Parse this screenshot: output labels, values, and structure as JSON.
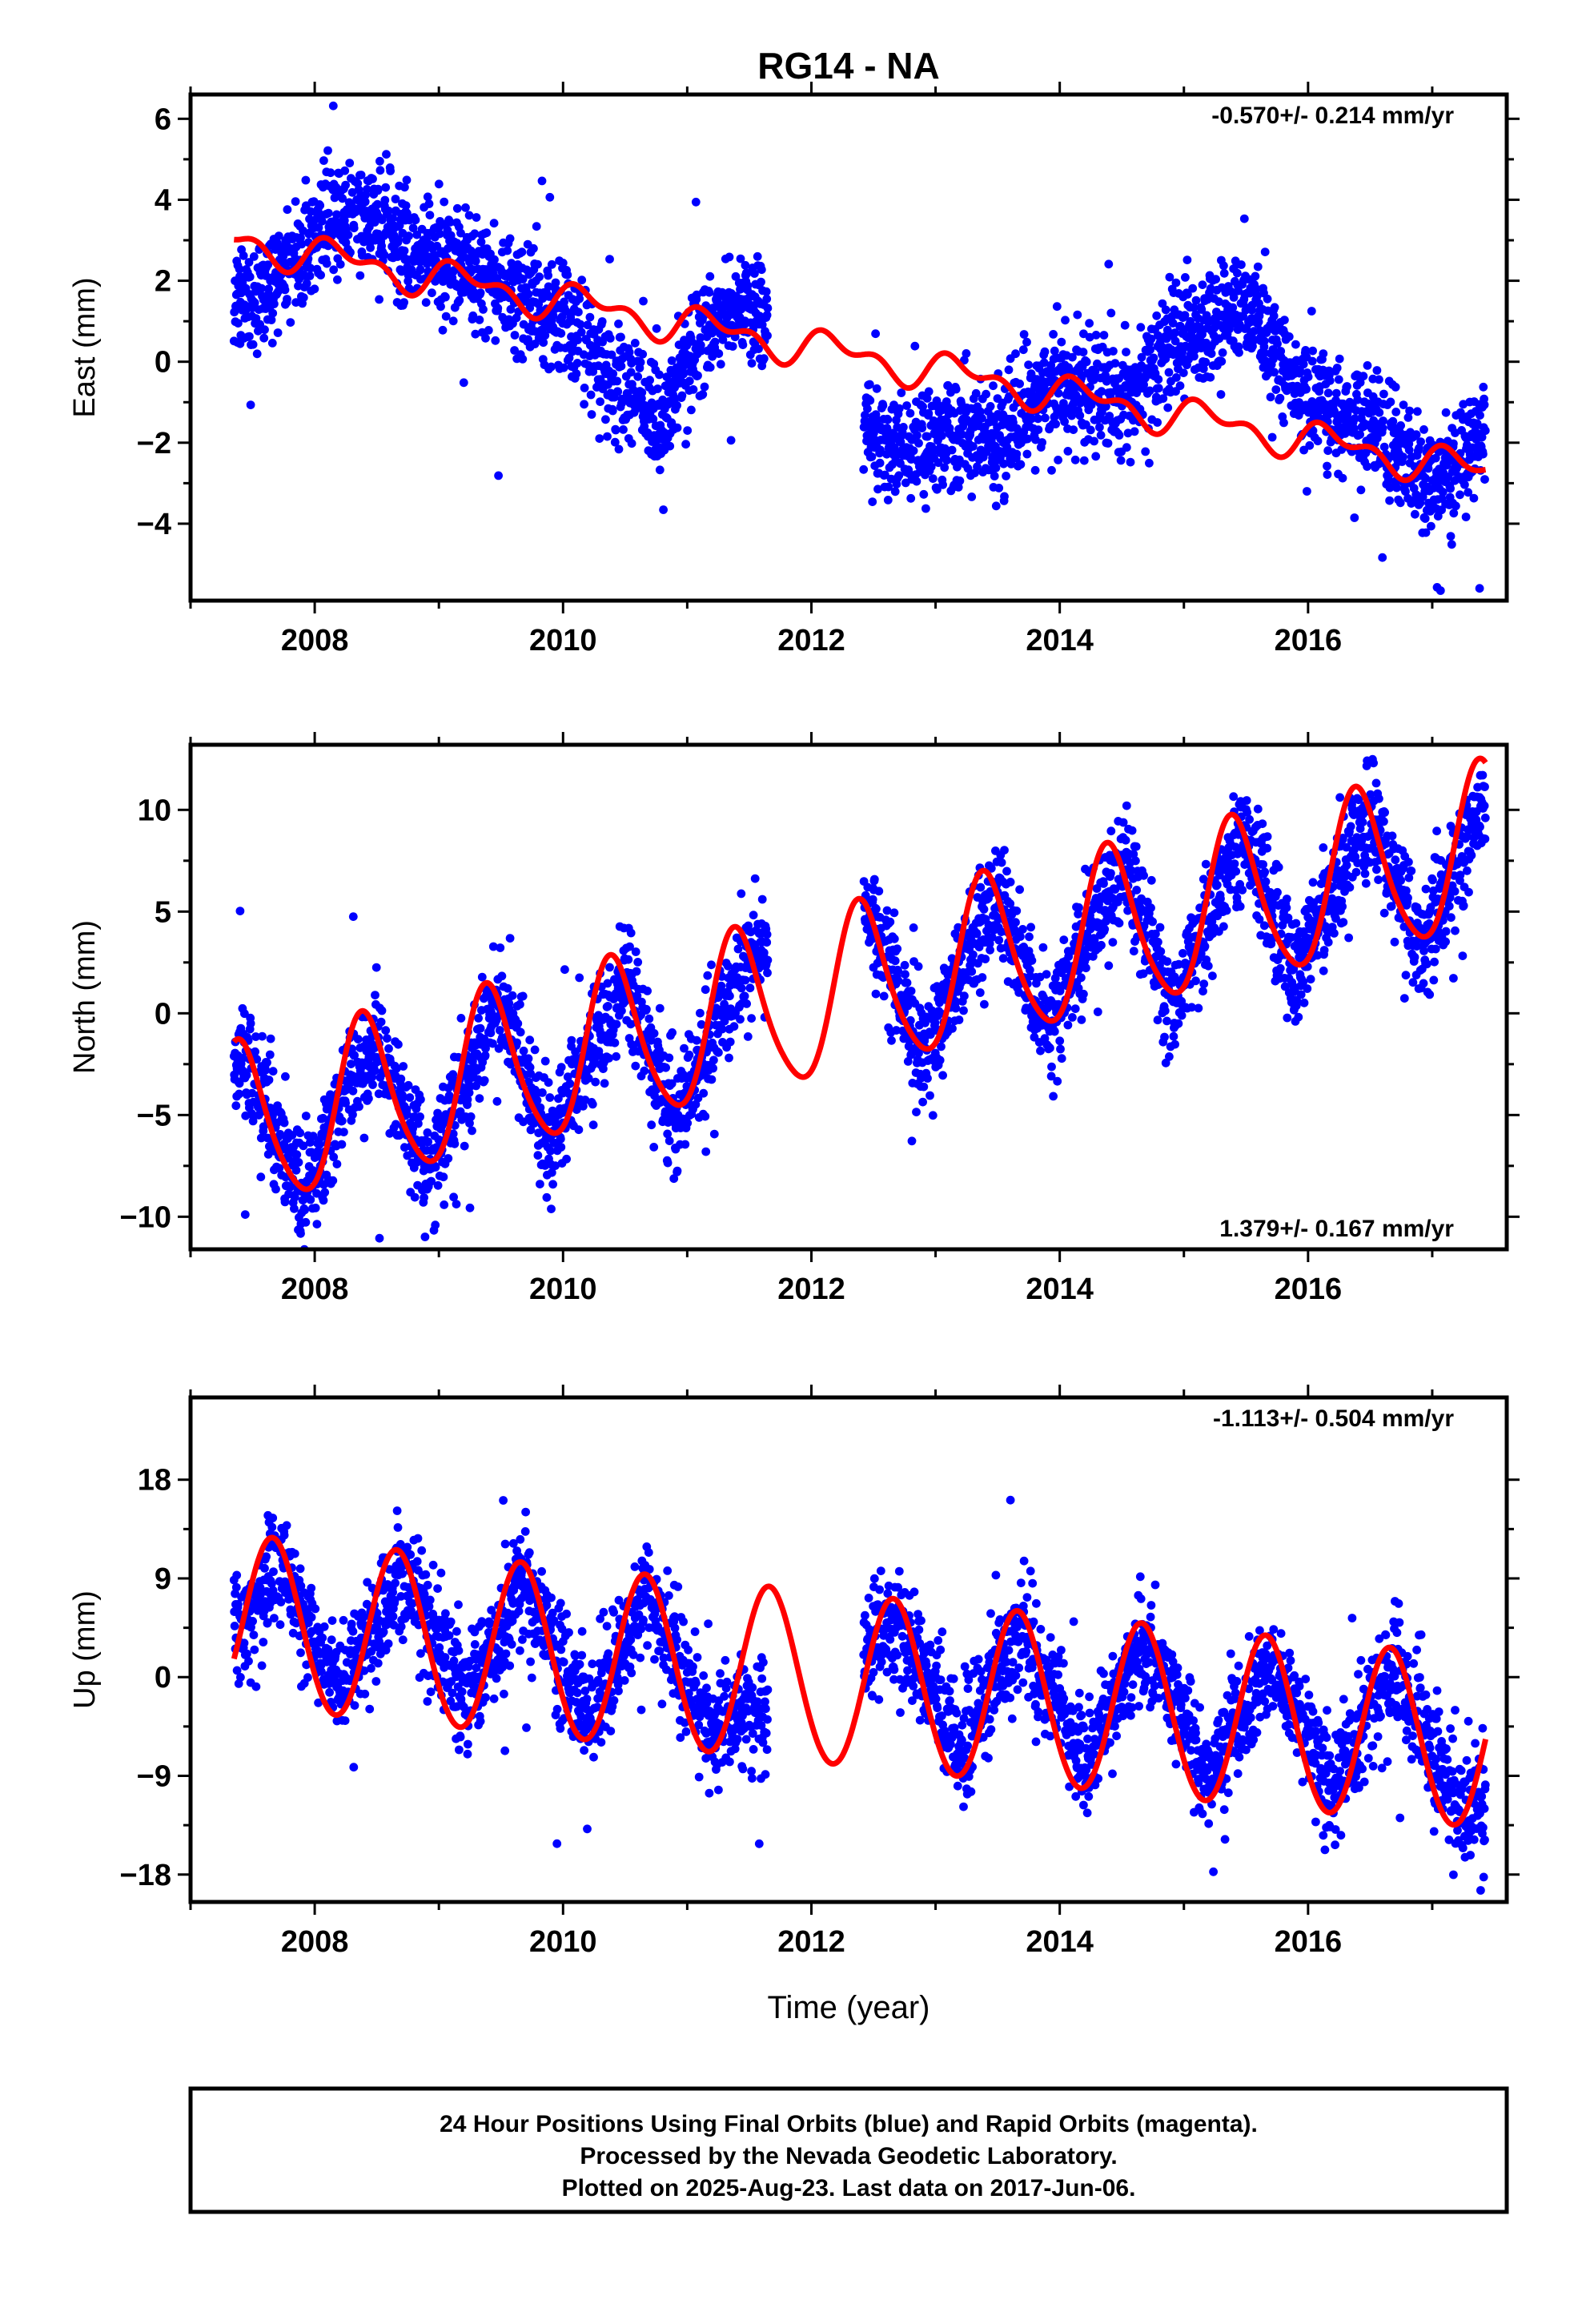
{
  "title": "RG14 - NA",
  "x_label": "Time (year)",
  "footer": {
    "line1": "24 Hour Positions Using Final Orbits (blue) and Rapid Orbits (magenta).",
    "line2": "Processed by the Nevada Geodetic Laboratory.",
    "line3": "Plotted on 2025-Aug-23. Last data on 2017-Jun-06."
  },
  "colors": {
    "final_orbits": "#0000ff",
    "rapid_orbits": "#ff00ff",
    "model": "#ff0000",
    "frame": "#000000"
  },
  "chart_data": [
    {
      "type": "scatter",
      "component": "east",
      "ylabel": "East (mm)",
      "rate_text": "-0.570+/- 0.214 mm/yr",
      "rate_position": "top-right",
      "xlim": [
        2007.0,
        2017.6
      ],
      "ylim": [
        -5.9,
        6.6
      ],
      "yticks": [
        -4,
        -2,
        0,
        2,
        4,
        6
      ],
      "xticks": [
        2008,
        2010,
        2012,
        2014,
        2016
      ],
      "grid": false,
      "data_start": 2007.35,
      "data_end": 2017.43,
      "data_gap": [
        2011.65,
        2012.42
      ],
      "model": {
        "rate_mm_per_yr": -0.57,
        "offset": 3.0,
        "annual_amp": 0.35,
        "annual_phase": 0.3,
        "semiannual_amp": 0.25,
        "semiannual_phase": 1.0,
        "step_at": 2012.45,
        "step_size": 0.0
      },
      "series": [
        {
          "name": "Final Orbits",
          "color": "#0000ff",
          "points_sampled": [
            [
              2007.5,
              1.5
            ],
            [
              2007.8,
              2.5
            ],
            [
              2008.1,
              3.5
            ],
            [
              2008.5,
              3.6
            ],
            [
              2008.8,
              2.6
            ],
            [
              2009.2,
              2.4
            ],
            [
              2009.6,
              1.7
            ],
            [
              2010.0,
              1.2
            ],
            [
              2010.4,
              -0.5
            ],
            [
              2010.8,
              -1.5
            ],
            [
              2011.1,
              0.7
            ],
            [
              2011.5,
              1.5
            ],
            [
              2012.6,
              -2.2
            ],
            [
              2013.0,
              -1.8
            ],
            [
              2013.5,
              -1.8
            ],
            [
              2014.0,
              -0.5
            ],
            [
              2014.5,
              -0.9
            ],
            [
              2015.0,
              0.6
            ],
            [
              2015.5,
              1.5
            ],
            [
              2016.0,
              -0.9
            ],
            [
              2016.5,
              -1.5
            ],
            [
              2017.0,
              -3.1
            ],
            [
              2017.4,
              -1.8
            ]
          ]
        }
      ]
    },
    {
      "type": "scatter",
      "component": "north",
      "ylabel": "North (mm)",
      "rate_text": "1.379+/- 0.167 mm/yr",
      "rate_position": "bottom-right",
      "xlim": [
        2007.0,
        2017.6
      ],
      "ylim": [
        -11.6,
        13.2
      ],
      "yticks": [
        -10,
        -5,
        0,
        5,
        10
      ],
      "xticks": [
        2008,
        2010,
        2012,
        2014,
        2016
      ],
      "grid": false,
      "data_start": 2007.35,
      "data_end": 2017.43,
      "data_gap": [
        2011.65,
        2012.42
      ],
      "model": {
        "rate_mm_per_yr": 1.379,
        "offset": -5.75,
        "annual_amp": 4.0,
        "annual_phase": -0.95,
        "semiannual_amp": 0.55,
        "semiannual_phase": -2.7,
        "step_at": 2012.45,
        "step_size": 0.0
      },
      "series": [
        {
          "name": "Final Orbits",
          "color": "#0000ff",
          "points_sampled": [
            [
              2007.5,
              -2.5
            ],
            [
              2007.9,
              -9.0
            ],
            [
              2008.5,
              -1.0
            ],
            [
              2008.9,
              -7.8
            ],
            [
              2009.5,
              0.5
            ],
            [
              2009.9,
              -6.5
            ],
            [
              2010.5,
              1.8
            ],
            [
              2010.9,
              -5.0
            ],
            [
              2011.5,
              3.0
            ],
            [
              2012.5,
              4.8
            ],
            [
              2012.9,
              -2.3
            ],
            [
              2013.5,
              6.0
            ],
            [
              2013.9,
              -1.0
            ],
            [
              2014.5,
              7.5
            ],
            [
              2014.9,
              0.3
            ],
            [
              2015.5,
              8.8
            ],
            [
              2015.9,
              1.8
            ],
            [
              2016.5,
              10.0
            ],
            [
              2016.9,
              3.2
            ],
            [
              2017.4,
              9.8
            ]
          ]
        }
      ]
    },
    {
      "type": "scatter",
      "component": "up",
      "ylabel": "Up (mm)",
      "rate_text": "-1.113+/- 0.504 mm/yr",
      "rate_position": "top-right",
      "xlim": [
        2007.0,
        2017.6
      ],
      "ylim": [
        -20.5,
        25.5
      ],
      "yticks": [
        -18,
        -9,
        0,
        9,
        18
      ],
      "xticks": [
        2008,
        2010,
        2012,
        2014,
        2016
      ],
      "grid": false,
      "data_start": 2007.35,
      "data_end": 2017.43,
      "data_gap": [
        2011.65,
        2012.42
      ],
      "model": {
        "rate_mm_per_yr": -1.113,
        "offset": 5.0,
        "annual_amp": 7.8,
        "annual_phase": -2.6,
        "semiannual_amp": 0.3,
        "semiannual_phase": 0.0,
        "step_at": 2012.45,
        "step_size": 0.0
      },
      "series": [
        {
          "name": "Final Orbits",
          "color": "#0000ff",
          "points_sampled": [
            [
              2007.5,
              5.0
            ],
            [
              2007.7,
              11.0
            ],
            [
              2008.2,
              -1.0
            ],
            [
              2008.7,
              9.5
            ],
            [
              2009.2,
              -2.0
            ],
            [
              2009.7,
              8.5
            ],
            [
              2010.2,
              -3.5
            ],
            [
              2010.7,
              7.5
            ],
            [
              2011.2,
              -5.0
            ],
            [
              2012.7,
              5.0
            ],
            [
              2013.2,
              -6.5
            ],
            [
              2013.7,
              4.0
            ],
            [
              2014.2,
              -7.5
            ],
            [
              2014.7,
              3.0
            ],
            [
              2015.2,
              -9.0
            ],
            [
              2015.7,
              2.0
            ],
            [
              2016.2,
              -10.0
            ],
            [
              2016.7,
              1.0
            ],
            [
              2017.2,
              -11.5
            ]
          ]
        }
      ]
    }
  ]
}
